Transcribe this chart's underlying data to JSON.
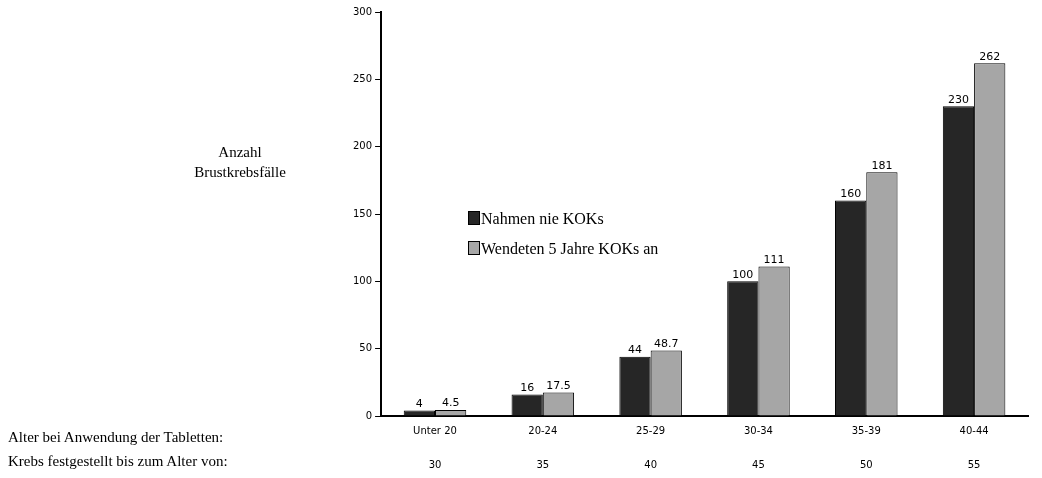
{
  "chart_data": {
    "type": "bar",
    "ylabel": "Anzahl Brustkrebsfälle",
    "categories": [
      "Unter 20",
      "20-24",
      "25-29",
      "30-34",
      "35-39",
      "40-44"
    ],
    "series": [
      {
        "name": "Nahmen nie KOKs",
        "color": "#262626",
        "values": [
          4,
          16,
          44,
          100,
          160,
          230
        ]
      },
      {
        "name": "Wendeten 5 Jahre KOKs an",
        "color": "#a6a6a6",
        "values": [
          4.5,
          17.5,
          48.7,
          111,
          181,
          262
        ]
      }
    ],
    "ylim": [
      0,
      300
    ],
    "yticks": [
      0,
      50,
      100,
      150,
      200,
      250,
      300
    ],
    "grid": false,
    "legend": "left",
    "data_labels": true,
    "annotations": [
      "Alter bei Anwendung der Tabletten:",
      "Krebs festgestellt bis zum Alter von:",
      "30",
      "35",
      "40",
      "45",
      "50",
      "55"
    ]
  }
}
